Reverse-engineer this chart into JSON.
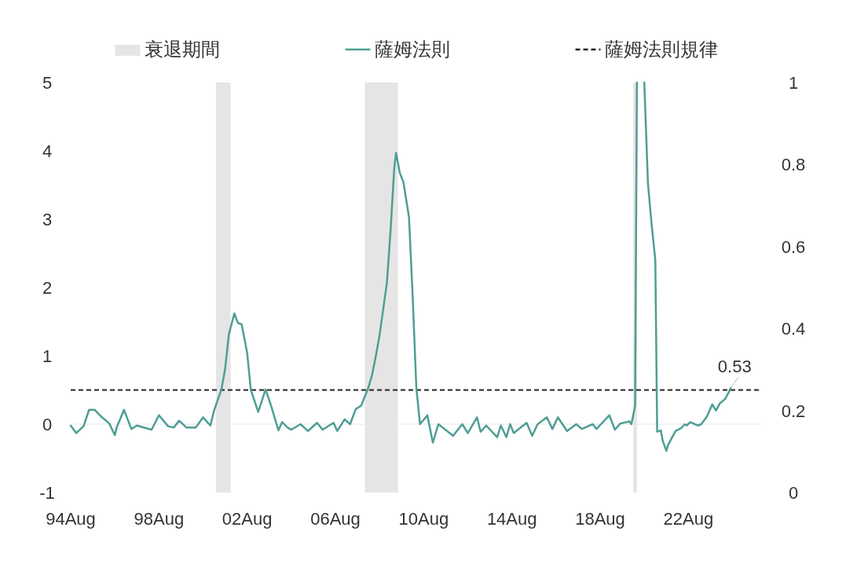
{
  "chart_data": {
    "type": "line",
    "legend": "top",
    "xlim": [
      "1994-08",
      "2025-12"
    ],
    "xticks": [
      {
        "value": "1994-08",
        "label": "94Aug"
      },
      {
        "value": "1998-08",
        "label": "98Aug"
      },
      {
        "value": "2002-08",
        "label": "02Aug"
      },
      {
        "value": "2006-08",
        "label": "06Aug"
      },
      {
        "value": "2010-08",
        "label": "10Aug"
      },
      {
        "value": "2014-08",
        "label": "14Aug"
      },
      {
        "value": "2018-08",
        "label": "18Aug"
      },
      {
        "value": "2022-08",
        "label": "22Aug"
      }
    ],
    "ylim": [
      -1,
      5
    ],
    "yticks": [
      -1,
      0,
      1,
      2,
      3,
      4,
      5
    ],
    "y2lim": [
      0,
      1
    ],
    "y2ticks": [
      0,
      0.2,
      0.4,
      0.6,
      0.8,
      1
    ],
    "series": [
      {
        "name": "薩姆法則",
        "color": "#4e9e94",
        "x": [
          "1994-08",
          "1994-11",
          "1995-03",
          "1995-06",
          "1995-09",
          "1996-01",
          "1996-02",
          "1996-05",
          "1996-08",
          "1996-09",
          "1997-01",
          "1997-05",
          "1997-08",
          "1998-04",
          "1998-08",
          "1999-01",
          "1999-04",
          "1999-07",
          "1999-11",
          "2000-04",
          "2000-08",
          "2000-12",
          "2001-02",
          "2001-06",
          "2001-08",
          "2001-10",
          "2002-01",
          "2002-03",
          "2002-05",
          "2002-08",
          "2002-10",
          "2003-02",
          "2003-06",
          "2003-09",
          "2004-01",
          "2004-03",
          "2004-06",
          "2004-08",
          "2005-01",
          "2005-05",
          "2005-10",
          "2006-01",
          "2006-07",
          "2006-09",
          "2007-01",
          "2007-04",
          "2007-07",
          "2007-10",
          "2008-02",
          "2008-04",
          "2008-06",
          "2008-08",
          "2008-12",
          "2009-02",
          "2009-04",
          "2009-05",
          "2009-07",
          "2009-09",
          "2009-12",
          "2010-02",
          "2010-04",
          "2010-06",
          "2010-10",
          "2011-01",
          "2011-04",
          "2011-12",
          "2012-05",
          "2012-08",
          "2013-01",
          "2013-03",
          "2013-06",
          "2013-12",
          "2014-02",
          "2014-05",
          "2014-07",
          "2014-09",
          "2015-04",
          "2015-07",
          "2015-10",
          "2016-03",
          "2016-06",
          "2016-09",
          "2017-02",
          "2017-07",
          "2017-10",
          "2018-04",
          "2018-06",
          "2019-01",
          "2019-04",
          "2019-07",
          "2019-12",
          "2020-01",
          "2020-03",
          "2020-04",
          "2020-05",
          "2020-06",
          "2020-07",
          "2020-08",
          "2020-10",
          "2020-12",
          "2021-02",
          "2021-03",
          "2021-05",
          "2021-06",
          "2021-08",
          "2021-09",
          "2022-01",
          "2022-04",
          "2022-06",
          "2022-07",
          "2022-09",
          "2023-01",
          "2023-03",
          "2023-06",
          "2023-09",
          "2023-11",
          "2024-01",
          "2024-04",
          "2024-06",
          "2024-07"
        ],
        "values": [
          -0.02,
          -0.13,
          -0.03,
          0.21,
          0.21,
          0.1,
          0.08,
          0.01,
          -0.16,
          -0.05,
          0.21,
          -0.07,
          -0.02,
          -0.08,
          0.13,
          -0.03,
          -0.05,
          0.05,
          -0.05,
          -0.05,
          0.1,
          -0.02,
          0.2,
          0.51,
          0.81,
          1.31,
          1.62,
          1.48,
          1.46,
          1.04,
          0.5,
          0.18,
          0.51,
          0.27,
          -0.09,
          0.03,
          -0.05,
          -0.08,
          0.0,
          -0.1,
          0.02,
          -0.08,
          0.02,
          -0.1,
          0.07,
          0.0,
          0.22,
          0.27,
          0.54,
          0.73,
          1.0,
          1.3,
          2.07,
          2.84,
          3.75,
          3.97,
          3.68,
          3.54,
          3.03,
          1.88,
          0.54,
          0.0,
          0.13,
          -0.27,
          0.0,
          -0.17,
          0.0,
          -0.13,
          0.1,
          -0.11,
          -0.02,
          -0.19,
          -0.02,
          -0.19,
          0.0,
          -0.13,
          0.02,
          -0.17,
          0.0,
          0.1,
          -0.07,
          0.1,
          -0.1,
          0.0,
          -0.07,
          0.0,
          -0.07,
          0.13,
          -0.08,
          0.01,
          0.04,
          0.0,
          0.27,
          5,
          null,
          null,
          null,
          5,
          3.52,
          2.92,
          2.4,
          -0.11,
          -0.09,
          -0.24,
          -0.39,
          -0.3,
          -0.1,
          -0.06,
          0.0,
          -0.02,
          0.03,
          -0.02,
          0.0,
          0.11,
          0.29,
          0.2,
          0.3,
          0.37,
          0.47,
          0.53
        ]
      }
    ],
    "bands": [
      {
        "axis": "x",
        "from": "2001-03",
        "to": "2001-11",
        "label": "衰退期間",
        "color": "#e5e5e5"
      },
      {
        "axis": "x",
        "from": "2007-12",
        "to": "2009-06",
        "color": "#e5e5e5"
      },
      {
        "axis": "x",
        "from": "2020-02",
        "to": "2020-04",
        "color": "#e5e5e5"
      }
    ],
    "ref_lines": [
      {
        "axis": "y",
        "value": 0,
        "color": "#e8e8e8"
      },
      {
        "axis": "y",
        "value": 0.5,
        "label": "薩姆法則規律",
        "color": "#222222",
        "line_style": "dashed"
      }
    ],
    "annotations": [
      {
        "text": "0.53",
        "x": "2024-07",
        "y": 0.53
      }
    ]
  }
}
